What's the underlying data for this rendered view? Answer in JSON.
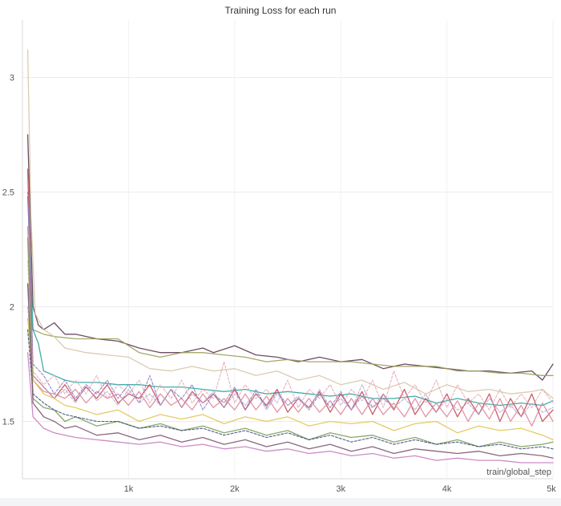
{
  "chart_data": {
    "type": "line",
    "title": "Training Loss for each run",
    "xlabel": "train/global_step",
    "ylabel": "",
    "xlim": [
      0,
      5000
    ],
    "ylim": [
      1.25,
      3.25
    ],
    "x_ticks": [
      {
        "value": 1000,
        "label": "1k"
      },
      {
        "value": 2000,
        "label": "2k"
      },
      {
        "value": 3000,
        "label": "3k"
      },
      {
        "value": 4000,
        "label": "4k"
      },
      {
        "value": 5000,
        "label": "5k"
      }
    ],
    "y_ticks": [
      {
        "value": 1.5,
        "label": "1.5"
      },
      {
        "value": 2,
        "label": "2"
      },
      {
        "value": 2.5,
        "label": "2.5"
      },
      {
        "value": 3,
        "label": "3"
      }
    ],
    "grid": true,
    "legend": "none",
    "series": [
      {
        "color": "#5c3a52",
        "dash": "solid",
        "x": [
          50,
          100,
          150,
          200,
          300,
          400,
          500,
          700,
          900,
          1100,
          1300,
          1500,
          1700,
          1800,
          2000,
          2200,
          2400,
          2600,
          2800,
          3000,
          3200,
          3400,
          3600,
          3800,
          4000,
          4200,
          4400,
          4600,
          4800,
          4900,
          5000
        ],
        "y": [
          2.75,
          2.0,
          1.92,
          1.9,
          1.93,
          1.88,
          1.88,
          1.86,
          1.85,
          1.82,
          1.8,
          1.8,
          1.82,
          1.8,
          1.83,
          1.79,
          1.78,
          1.76,
          1.78,
          1.76,
          1.77,
          1.73,
          1.75,
          1.74,
          1.73,
          1.72,
          1.72,
          1.71,
          1.72,
          1.68,
          1.75
        ]
      },
      {
        "color": "#9aa05a",
        "dash": "solid",
        "x": [
          50,
          100,
          200,
          300,
          500,
          700,
          900,
          1100,
          1300,
          1500,
          1700,
          1900,
          2100,
          2300,
          2500,
          2700,
          2900,
          3100,
          3300,
          3500,
          3700,
          3900,
          4100,
          4300,
          4500,
          4700,
          4900,
          5000
        ],
        "y": [
          2.1,
          1.9,
          1.88,
          1.87,
          1.86,
          1.86,
          1.86,
          1.8,
          1.78,
          1.8,
          1.8,
          1.79,
          1.78,
          1.76,
          1.77,
          1.76,
          1.76,
          1.76,
          1.75,
          1.74,
          1.74,
          1.74,
          1.72,
          1.72,
          1.71,
          1.71,
          1.7,
          1.7
        ]
      },
      {
        "color": "#d6c6a8",
        "dash": "solid",
        "x": [
          50,
          80,
          120,
          200,
          300,
          400,
          600,
          800,
          1000,
          1200,
          1400,
          1600,
          1800,
          2000,
          2200,
          2400,
          2600,
          2800,
          3000,
          3200,
          3400,
          3600,
          3800,
          4000,
          4200,
          4400,
          4600,
          4800,
          4900,
          5000
        ],
        "y": [
          3.12,
          2.4,
          1.97,
          1.9,
          1.87,
          1.82,
          1.8,
          1.79,
          1.78,
          1.73,
          1.72,
          1.74,
          1.72,
          1.73,
          1.7,
          1.72,
          1.68,
          1.7,
          1.66,
          1.68,
          1.64,
          1.67,
          1.62,
          1.66,
          1.63,
          1.64,
          1.62,
          1.63,
          1.64,
          1.6
        ]
      },
      {
        "color": "#2aa5a0",
        "dash": "solid",
        "x": [
          50,
          100,
          150,
          200,
          300,
          400,
          500,
          700,
          900,
          1100,
          1300,
          1500,
          1700,
          1900,
          2100,
          2300,
          2500,
          2700,
          2900,
          3100,
          3300,
          3500,
          3700,
          3900,
          4100,
          4300,
          4500,
          4700,
          4900,
          5000
        ],
        "y": [
          2.48,
          1.9,
          1.84,
          1.72,
          1.7,
          1.68,
          1.67,
          1.67,
          1.66,
          1.66,
          1.65,
          1.65,
          1.64,
          1.63,
          1.64,
          1.62,
          1.63,
          1.62,
          1.61,
          1.62,
          1.6,
          1.6,
          1.61,
          1.58,
          1.6,
          1.58,
          1.57,
          1.58,
          1.57,
          1.59
        ]
      },
      {
        "color": "#c64d58",
        "dash": "solid",
        "x": [
          50,
          100,
          200,
          300,
          400,
          500,
          600,
          700,
          800,
          900,
          1000,
          1100,
          1200,
          1300,
          1400,
          1500,
          1600,
          1700,
          1800,
          1900,
          2000,
          2100,
          2200,
          2300,
          2400,
          2500,
          2600,
          2700,
          2800,
          2900,
          3000,
          3100,
          3200,
          3300,
          3400,
          3500,
          3600,
          3700,
          3800,
          3900,
          4000,
          4100,
          4200,
          4300,
          4400,
          4500,
          4600,
          4700,
          4800,
          4900,
          5000
        ],
        "y": [
          2.6,
          1.7,
          1.65,
          1.6,
          1.66,
          1.59,
          1.65,
          1.6,
          1.66,
          1.58,
          1.62,
          1.6,
          1.66,
          1.57,
          1.64,
          1.56,
          1.63,
          1.58,
          1.62,
          1.56,
          1.64,
          1.55,
          1.62,
          1.57,
          1.64,
          1.54,
          1.6,
          1.56,
          1.63,
          1.54,
          1.62,
          1.55,
          1.63,
          1.53,
          1.62,
          1.55,
          1.64,
          1.53,
          1.6,
          1.54,
          1.62,
          1.52,
          1.6,
          1.53,
          1.62,
          1.5,
          1.6,
          1.52,
          1.62,
          1.5,
          1.55
        ]
      },
      {
        "color": "#e08a9c",
        "dash": "solid",
        "x": [
          50,
          100,
          200,
          300,
          400,
          500,
          600,
          700,
          800,
          900,
          1000,
          1100,
          1200,
          1300,
          1400,
          1500,
          1600,
          1700,
          1800,
          1900,
          2000,
          2100,
          2200,
          2300,
          2400,
          2500,
          2600,
          2700,
          2800,
          2900,
          3000,
          3100,
          3200,
          3300,
          3400,
          3500,
          3600,
          3700,
          3800,
          3900,
          4000,
          4100,
          4200,
          4300,
          4400,
          4500,
          4600,
          4700,
          4800,
          4900,
          5000
        ],
        "y": [
          2.35,
          1.68,
          1.63,
          1.62,
          1.6,
          1.64,
          1.58,
          1.63,
          1.6,
          1.62,
          1.57,
          1.63,
          1.56,
          1.62,
          1.57,
          1.6,
          1.55,
          1.62,
          1.56,
          1.6,
          1.55,
          1.62,
          1.55,
          1.61,
          1.54,
          1.6,
          1.54,
          1.6,
          1.54,
          1.59,
          1.53,
          1.6,
          1.53,
          1.6,
          1.53,
          1.58,
          1.52,
          1.6,
          1.52,
          1.58,
          1.52,
          1.59,
          1.5,
          1.58,
          1.51,
          1.6,
          1.5,
          1.57,
          1.48,
          1.58,
          1.5
        ]
      },
      {
        "color": "#8a7bc4",
        "dash": "dashed",
        "x": [
          50,
          100,
          200,
          300,
          400,
          500,
          600,
          700,
          800,
          900,
          1000,
          1100,
          1200,
          1300,
          1400,
          1500,
          1600,
          1700,
          1800,
          1900,
          2000,
          2100,
          2200,
          2300,
          2400,
          2500,
          2600,
          2700,
          2800,
          2900,
          3000,
          3100,
          3200,
          3300,
          3400,
          3450
        ],
        "y": [
          2.5,
          1.75,
          1.7,
          1.62,
          1.68,
          1.6,
          1.66,
          1.62,
          1.68,
          1.6,
          1.66,
          1.58,
          1.7,
          1.57,
          1.64,
          1.6,
          1.66,
          1.55,
          1.62,
          1.58,
          1.65,
          1.55,
          1.64,
          1.56,
          1.63,
          1.57,
          1.6,
          1.55,
          1.62,
          1.56,
          1.63,
          1.55,
          1.61,
          1.56,
          1.6,
          1.58
        ]
      },
      {
        "color": "#e7a9b4",
        "dash": "dashed",
        "x": [
          50,
          100,
          200,
          300,
          400,
          500,
          600,
          700,
          800,
          900,
          1000,
          1100,
          1200,
          1300,
          1400,
          1500,
          1600,
          1700,
          1800,
          1900,
          2000,
          2100,
          2200,
          2300,
          2400,
          2500,
          2600,
          2700,
          2800,
          2900,
          3000,
          3100,
          3200,
          3300,
          3400,
          3500,
          3600,
          3700,
          3800,
          3900,
          4000,
          4100,
          4200,
          4300,
          4400,
          4500,
          4600,
          4700,
          4800,
          4900,
          5000
        ],
        "y": [
          2.2,
          1.72,
          1.66,
          1.7,
          1.62,
          1.68,
          1.62,
          1.7,
          1.6,
          1.66,
          1.62,
          1.68,
          1.58,
          1.66,
          1.6,
          1.68,
          1.58,
          1.64,
          1.6,
          1.76,
          1.58,
          1.66,
          1.6,
          1.64,
          1.58,
          1.68,
          1.56,
          1.64,
          1.6,
          1.66,
          1.57,
          1.64,
          1.59,
          1.68,
          1.56,
          1.72,
          1.6,
          1.66,
          1.58,
          1.68,
          1.56,
          1.66,
          1.58,
          1.62,
          1.55,
          1.64,
          1.56,
          1.62,
          1.56,
          1.64,
          1.58
        ]
      },
      {
        "color": "#b5a6cf",
        "dash": "dashed",
        "x": [
          50,
          100,
          200,
          300,
          400,
          500,
          600,
          700,
          800,
          900,
          1000,
          1100,
          1200,
          1300,
          1400,
          1500,
          1600,
          1700,
          1800,
          1900,
          2000,
          2100,
          2200,
          2300,
          2400,
          2500,
          2600,
          2700,
          2800,
          2900,
          3000,
          3100,
          3200,
          3300,
          3400,
          3500,
          3600,
          3700,
          3800,
          3900,
          4000,
          4100,
          4200,
          4300,
          4400,
          4500,
          4600,
          4700,
          4800,
          4900,
          5000
        ],
        "y": [
          2.0,
          1.7,
          1.65,
          1.6,
          1.64,
          1.58,
          1.66,
          1.59,
          1.63,
          1.57,
          1.64,
          1.58,
          1.62,
          1.57,
          1.64,
          1.56,
          1.62,
          1.58,
          1.63,
          1.56,
          1.62,
          1.57,
          1.63,
          1.55,
          1.62,
          1.57,
          1.61,
          1.55,
          1.64,
          1.56,
          1.6,
          1.55,
          1.66,
          1.56,
          1.62,
          1.56,
          1.6,
          1.55,
          1.62,
          1.54,
          1.6,
          1.55,
          1.58,
          1.53,
          1.6,
          1.54,
          1.57,
          1.52,
          1.58,
          1.54,
          1.56
        ]
      },
      {
        "color": "#e3c552",
        "dash": "solid",
        "x": [
          50,
          100,
          200,
          300,
          400,
          500,
          700,
          900,
          1100,
          1300,
          1500,
          1700,
          1900,
          2100,
          2300,
          2500,
          2700,
          2900,
          3100,
          3300,
          3500,
          3700,
          3900,
          4100,
          4300,
          4500,
          4700,
          4900,
          5000
        ],
        "y": [
          1.95,
          1.68,
          1.62,
          1.6,
          1.57,
          1.56,
          1.53,
          1.55,
          1.5,
          1.53,
          1.51,
          1.53,
          1.49,
          1.52,
          1.5,
          1.52,
          1.48,
          1.5,
          1.49,
          1.5,
          1.46,
          1.49,
          1.5,
          1.45,
          1.48,
          1.46,
          1.47,
          1.44,
          1.42
        ]
      },
      {
        "color": "#7a9e5c",
        "dash": "solid",
        "x": [
          50,
          100,
          200,
          300,
          400,
          500,
          700,
          900,
          1100,
          1300,
          1500,
          1700,
          1900,
          2100,
          2300,
          2500,
          2700,
          2900,
          3100,
          3300,
          3500,
          3700,
          3900,
          4100,
          4300,
          4500,
          4700,
          4900,
          5000
        ],
        "y": [
          2.3,
          1.6,
          1.56,
          1.55,
          1.5,
          1.52,
          1.48,
          1.5,
          1.47,
          1.49,
          1.46,
          1.48,
          1.45,
          1.47,
          1.44,
          1.46,
          1.42,
          1.45,
          1.43,
          1.44,
          1.41,
          1.43,
          1.4,
          1.42,
          1.39,
          1.41,
          1.39,
          1.4,
          1.41
        ]
      },
      {
        "color": "#3f4a7a",
        "dash": "dashed",
        "x": [
          50,
          100,
          200,
          300,
          400,
          500,
          700,
          900,
          1100,
          1300,
          1500,
          1700,
          1900,
          2100,
          2300,
          2500,
          2700,
          2900,
          3100,
          3300,
          3500,
          3700,
          3900,
          4100,
          4300,
          4500,
          4700,
          4900,
          5000
        ],
        "y": [
          1.9,
          1.62,
          1.58,
          1.55,
          1.53,
          1.52,
          1.5,
          1.5,
          1.47,
          1.48,
          1.46,
          1.47,
          1.44,
          1.46,
          1.43,
          1.45,
          1.42,
          1.44,
          1.41,
          1.43,
          1.4,
          1.42,
          1.4,
          1.41,
          1.39,
          1.4,
          1.38,
          1.39,
          1.38
        ]
      },
      {
        "color": "#7d5570",
        "dash": "solid",
        "x": [
          50,
          100,
          200,
          300,
          400,
          500,
          700,
          900,
          1100,
          1300,
          1500,
          1700,
          1900,
          2100,
          2300,
          2500,
          2700,
          2900,
          3100,
          3300,
          3500,
          3700,
          3900,
          4100,
          4300,
          4500,
          4700,
          4900,
          5000
        ],
        "y": [
          2.1,
          1.58,
          1.52,
          1.5,
          1.47,
          1.48,
          1.44,
          1.45,
          1.42,
          1.44,
          1.41,
          1.43,
          1.4,
          1.42,
          1.39,
          1.41,
          1.38,
          1.4,
          1.37,
          1.39,
          1.36,
          1.38,
          1.37,
          1.36,
          1.37,
          1.35,
          1.36,
          1.35,
          1.34
        ]
      },
      {
        "color": "#c77fc0",
        "dash": "solid",
        "x": [
          50,
          100,
          200,
          300,
          400,
          500,
          700,
          900,
          1100,
          1300,
          1500,
          1700,
          1900,
          2100,
          2300,
          2500,
          2700,
          2900,
          3100,
          3300,
          3500,
          3700,
          3900,
          4100,
          4300,
          4500,
          4700,
          4900,
          5000
        ],
        "y": [
          1.8,
          1.52,
          1.47,
          1.45,
          1.44,
          1.43,
          1.42,
          1.41,
          1.4,
          1.41,
          1.39,
          1.4,
          1.38,
          1.39,
          1.37,
          1.38,
          1.36,
          1.37,
          1.35,
          1.36,
          1.34,
          1.35,
          1.33,
          1.34,
          1.33,
          1.33,
          1.32,
          1.32,
          1.32
        ]
      }
    ]
  }
}
